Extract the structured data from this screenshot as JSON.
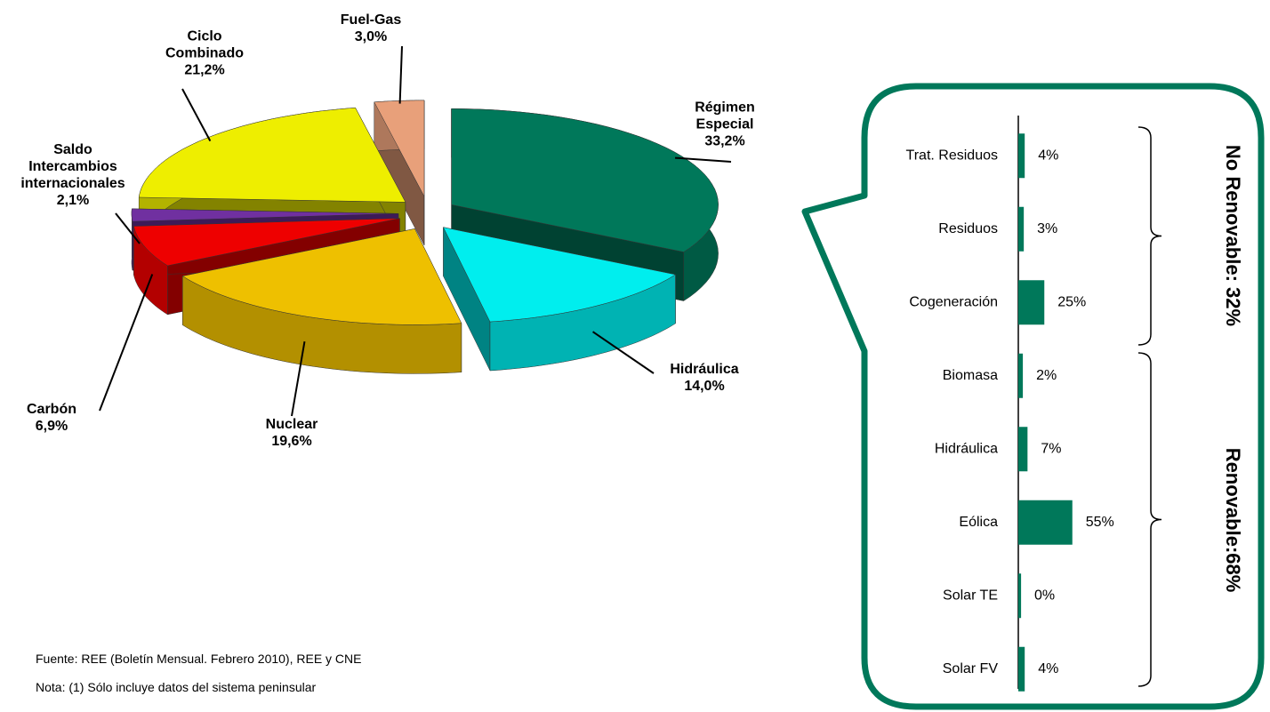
{
  "chart_data": [
    {
      "type": "pie3d",
      "categories": [
        "Régimen Especial",
        "Hidráulica",
        "Nuclear",
        "Carbón",
        "Saldo Intercambios internacionales",
        "Ciclo Combinado",
        "Fuel-Gas"
      ],
      "values": [
        33.2,
        14.0,
        19.6,
        6.9,
        2.1,
        21.2,
        3.0
      ],
      "value_labels": [
        "33,2%",
        "14,0%",
        "19,6%",
        "6,9%",
        "2,1%",
        "21,2%",
        "3,0%"
      ],
      "colors": [
        "#00785a",
        "#00eeee",
        "#eec000",
        "#ee0000",
        "#7030a0",
        "#eeee00",
        "#e8a07a"
      ]
    },
    {
      "type": "hbar",
      "categories": [
        "Trat. Residuos",
        "Residuos",
        "Cogeneración",
        "Biomasa",
        "Hidráulica",
        "Eólica",
        "Solar TE",
        "Solar FV"
      ],
      "values": [
        4,
        3,
        25,
        2,
        7,
        55,
        0,
        4
      ],
      "value_labels": [
        "4%",
        "3%",
        "25%",
        "2%",
        "7%",
        "55%",
        "0%",
        "4%"
      ],
      "color": "#00785a",
      "xlim": [
        0,
        100
      ],
      "groups": [
        "No Renovable: 32%",
        "Renovable:68%"
      ]
    }
  ],
  "notes": [
    "Fuente: REE (Boletín Mensual.  Febrero 2010), REE y CNE",
    "Nota: (1) Sólo incluye datos del sistema peninsular"
  ]
}
